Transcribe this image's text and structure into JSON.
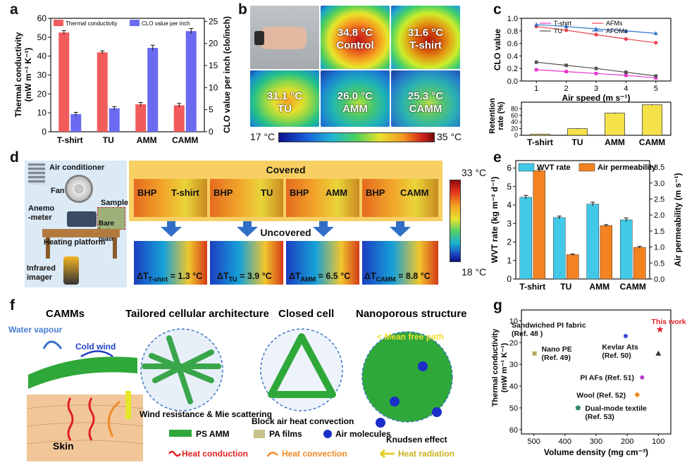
{
  "panels": {
    "a": "a",
    "b": "b",
    "c": "c",
    "d": "d",
    "e": "e",
    "f": "f",
    "g": "g"
  },
  "colors": {
    "red": "#f15b5b",
    "blue": "#6b6bf2",
    "cyan": "#43c9e8",
    "orange": "#f58220"
  },
  "panel_b": {
    "images": [
      {
        "temp": "",
        "label": ""
      },
      {
        "temp": "34.8 °C",
        "label": "Control"
      },
      {
        "temp": "31.6 °C",
        "label": "T-shirt"
      },
      {
        "temp": "31.1 °C",
        "label": "TU"
      },
      {
        "temp": "26.0 °C",
        "label": "AMM"
      },
      {
        "temp": "25.3 °C",
        "label": "CAMM"
      }
    ],
    "scale_min": "17 °C",
    "scale_max": "35 °C"
  },
  "panel_d": {
    "equipment": {
      "air_conditioner": "Air conditioner",
      "fan": "Fan",
      "anemometer": "Anemo\n-meter",
      "sample": "Sample",
      "bare_hot_plate": "Bare hot plate",
      "heating_platform": "Heating platform",
      "infrared": "Infrared imager"
    },
    "covered": "Covered",
    "uncovered": "Uncovered",
    "bhp": "BHP",
    "samples": [
      "T-shirt",
      "TU",
      "AMM",
      "CAMM"
    ],
    "deltas": [
      {
        "pre": "ΔT",
        "sub": "T-shirt",
        "val": " = 1.3 °C"
      },
      {
        "pre": "ΔT",
        "sub": "TU",
        "val": " = 3.9 °C"
      },
      {
        "pre": "ΔT",
        "sub": "AMM",
        "val": " = 6.5 °C"
      },
      {
        "pre": "ΔT",
        "sub": "CAMM",
        "val": " = 8.8 °C"
      }
    ],
    "scale_max": "33 °C",
    "scale_min": "18 °C"
  },
  "panel_f": {
    "titles": [
      "CAMMs",
      "Tailored cellular architecture",
      "Closed cell",
      "Nanoporous structure"
    ],
    "water_vapour": "Water vapour",
    "cold_wind": "Cold wind",
    "skin": "Skin",
    "wind_resistance": "Wind resistance\n& Mie scattering",
    "block_convection": "Block air heat convection",
    "mean_free_path": "< Mean free path",
    "knudsen": "Knudsen effect",
    "legend": {
      "ps_amm": "PS AMM",
      "pa_films": "PA films",
      "air_molecules": "Air molecules",
      "heat_conduction": "Heat conduction",
      "heat_convection": "Heat convection",
      "heat_radiation": "Heat radiation"
    }
  },
  "chart_data": [
    {
      "id": "a",
      "type": "bar",
      "categories": [
        "T-shirt",
        "TU",
        "AMM",
        "CAMM"
      ],
      "series": [
        {
          "name": "Thermal conductivity",
          "axis": "left",
          "values": [
            52.5,
            42.0,
            14.5,
            14.0
          ],
          "errors": [
            1.0,
            0.8,
            1.0,
            1.0
          ],
          "color": "#f15b5b"
        },
        {
          "name": "CLO value per inch",
          "axis": "right",
          "values": [
            4.0,
            5.3,
            19.0,
            22.8
          ],
          "errors": [
            0.4,
            0.4,
            0.6,
            0.6
          ],
          "color": "#6b6bf2"
        }
      ],
      "ylabel": "Thermal conductivity\n(mW m⁻¹ K⁻¹)",
      "ylabel_right": "CLO value per inch (clo/inch)",
      "ylim": [
        0,
        60
      ],
      "ylim_right": [
        0,
        25.7
      ],
      "yticks": [
        0,
        10,
        20,
        30,
        40,
        50,
        60
      ],
      "yticks_right": [
        0,
        5,
        10,
        15,
        20,
        25
      ]
    },
    {
      "id": "c-top",
      "type": "line",
      "x": [
        1,
        2,
        3,
        4,
        5
      ],
      "series": [
        {
          "name": "T-shirt",
          "values": [
            0.18,
            0.15,
            0.12,
            0.09,
            0.05
          ],
          "color": "#e934d0",
          "marker": "square"
        },
        {
          "name": "TU",
          "values": [
            0.3,
            0.25,
            0.2,
            0.14,
            0.08
          ],
          "color": "#555555",
          "marker": "square"
        },
        {
          "name": "AFMs",
          "values": [
            0.87,
            0.81,
            0.74,
            0.67,
            0.61
          ],
          "color": "#e8414a",
          "marker": "circle"
        },
        {
          "name": "AFOMs",
          "values": [
            0.9,
            0.87,
            0.83,
            0.8,
            0.76
          ],
          "color": "#2d72c8",
          "marker": "triangle"
        }
      ],
      "xlabel": "Air speed (m s⁻¹)",
      "ylabel": "CLO value",
      "xlim": [
        0.5,
        5.5
      ],
      "ylim": [
        0,
        1.0
      ],
      "xticks": [
        1,
        2,
        3,
        4,
        5
      ],
      "yticks": [
        0.0,
        0.2,
        0.4,
        0.6,
        0.8,
        1.0
      ]
    },
    {
      "id": "c-bottom",
      "type": "bar",
      "categories": [
        "T-shirt",
        "TU",
        "AMM",
        "CAMM"
      ],
      "values": [
        3,
        20,
        67,
        92
      ],
      "errors": [
        0.5,
        1,
        1.5,
        1.5
      ],
      "color": "#f5e24a",
      "ylabel": "Retention\nrate (%)",
      "ylim": [
        0,
        100
      ],
      "yticks": [
        0,
        20,
        40,
        60,
        80
      ]
    },
    {
      "id": "e",
      "type": "bar",
      "categories": [
        "T-shirt",
        "TU",
        "AMM",
        "CAMM"
      ],
      "series": [
        {
          "name": "WVT rate",
          "axis": "left",
          "values": [
            4.42,
            3.32,
            4.05,
            3.2
          ],
          "errors": [
            0.1,
            0.08,
            0.1,
            0.1
          ],
          "color": "#43c9e8"
        },
        {
          "name": "Air permeability",
          "axis": "right",
          "values": [
            3.39,
            0.76,
            1.67,
            0.99
          ],
          "errors": [
            0.04,
            0.02,
            0.03,
            0.03
          ],
          "color": "#f58220"
        }
      ],
      "ylabel": "WVT rate (kg m⁻² d⁻¹)",
      "ylabel_right": "Air permeability (m s⁻¹)",
      "ylim": [
        0,
        6.4
      ],
      "ylim_right": [
        0,
        3.7
      ],
      "yticks": [
        0,
        1,
        2,
        3,
        4,
        5,
        6
      ],
      "yticks_right": [
        0.0,
        0.5,
        1.0,
        1.5,
        2.0,
        2.5,
        3.0,
        3.5
      ]
    },
    {
      "id": "g",
      "type": "scatter",
      "xlabel": "Volume density (mg cm⁻³)",
      "ylabel": "Thermal conductivity\n(mW m⁻¹ K⁻¹)",
      "xlim": [
        540,
        60
      ],
      "ylim": [
        62,
        5
      ],
      "xticks": [
        500,
        400,
        300,
        200,
        100
      ],
      "yticks": [
        10,
        20,
        30,
        40,
        50,
        60
      ],
      "points": [
        {
          "label": "This work",
          "x": 95,
          "y": 14,
          "color": "#e0202a",
          "marker": "star"
        },
        {
          "label": "Sandwiched PI fabric\n(Ref. 48 )",
          "x": 205,
          "y": 17,
          "color": "#3d46d6",
          "marker": "circle"
        },
        {
          "label": "Nano PE\n(Ref. 49)",
          "x": 498,
          "y": 25,
          "color": "#b7a85a",
          "marker": "square"
        },
        {
          "label": "Kevlar Ats\n(Ref. 50)",
          "x": 100,
          "y": 25,
          "color": "#333333",
          "marker": "triangle"
        },
        {
          "label": "PI AFs (Ref. 51)",
          "x": 152,
          "y": 36,
          "color": "#b43ccf",
          "marker": "circle"
        },
        {
          "label": "Wool (Ref. 52)",
          "x": 168,
          "y": 44,
          "color": "#f08a24",
          "marker": "diamond"
        },
        {
          "label": "Dual-mode textile\n(Ref. 53)",
          "x": 358,
          "y": 50,
          "color": "#2e8a62",
          "marker": "pentagon"
        }
      ]
    }
  ]
}
